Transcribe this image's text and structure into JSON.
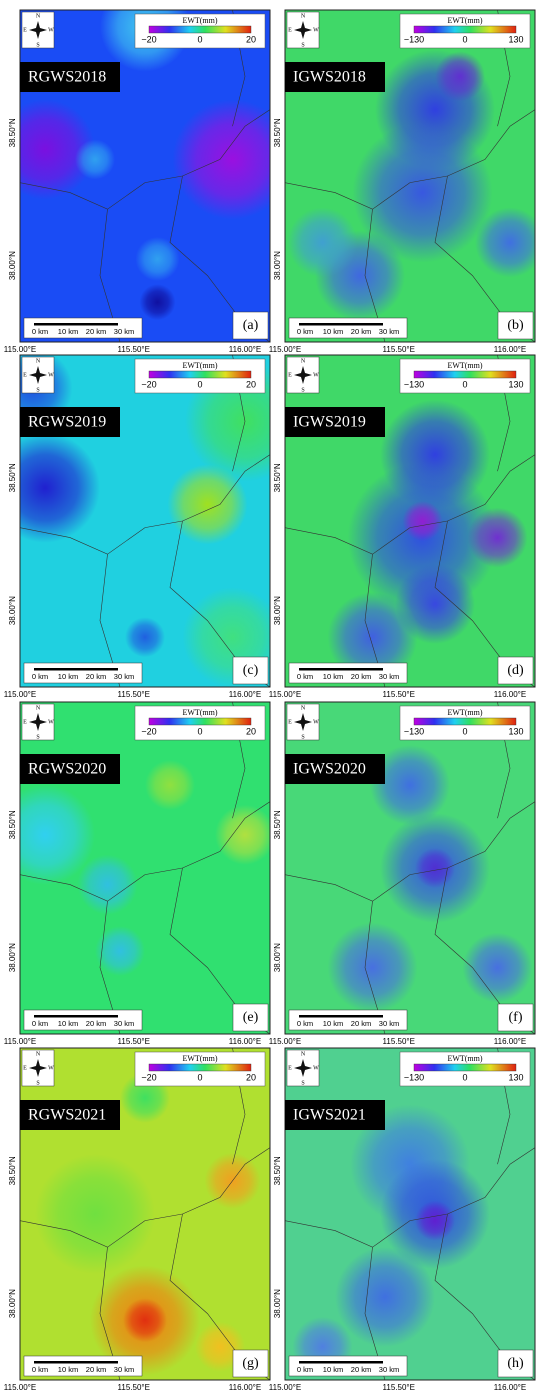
{
  "axis_labels": {
    "longitude": [
      "115.00°E",
      "115.50°E",
      "116.00°E"
    ],
    "latitude": [
      "38.50°N",
      "38.00°N"
    ]
  },
  "compass": {
    "north": "N",
    "east": "E",
    "west": "W",
    "south": "S"
  },
  "scale_bar": [
    "0 km",
    "10 km",
    "20 km",
    "30 km"
  ],
  "panels": [
    {
      "title": "RGWS2018",
      "letter": "(a)",
      "legend": {
        "title": "EWT(mm)",
        "ticks": [
          "−20",
          "0",
          "20"
        ]
      }
    },
    {
      "title": "IGWS2018",
      "letter": "(b)",
      "legend": {
        "title": "EWT(mm)",
        "ticks": [
          "−130",
          "0",
          "130"
        ]
      }
    },
    {
      "title": "RGWS2019",
      "letter": "(c)",
      "legend": {
        "title": "EWT(mm)",
        "ticks": [
          "−20",
          "0",
          "20"
        ]
      }
    },
    {
      "title": "IGWS2019",
      "letter": "(d)",
      "legend": {
        "title": "EWT(mm)",
        "ticks": [
          "−130",
          "0",
          "130"
        ]
      }
    },
    {
      "title": "RGWS2020",
      "letter": "(e)",
      "legend": {
        "title": "EWT(mm)",
        "ticks": [
          "−20",
          "0",
          "20"
        ]
      }
    },
    {
      "title": "IGWS2020",
      "letter": "(f)",
      "legend": {
        "title": "EWT(mm)",
        "ticks": [
          "−130",
          "0",
          "130"
        ]
      }
    },
    {
      "title": "RGWS2021",
      "letter": "(g)",
      "legend": {
        "title": "EWT(mm)",
        "ticks": [
          "−20",
          "0",
          "20"
        ]
      }
    },
    {
      "title": "IGWS2021",
      "letter": "(h)",
      "legend": {
        "title": "EWT(mm)",
        "ticks": [
          "−130",
          "0",
          "130"
        ]
      }
    }
  ]
}
